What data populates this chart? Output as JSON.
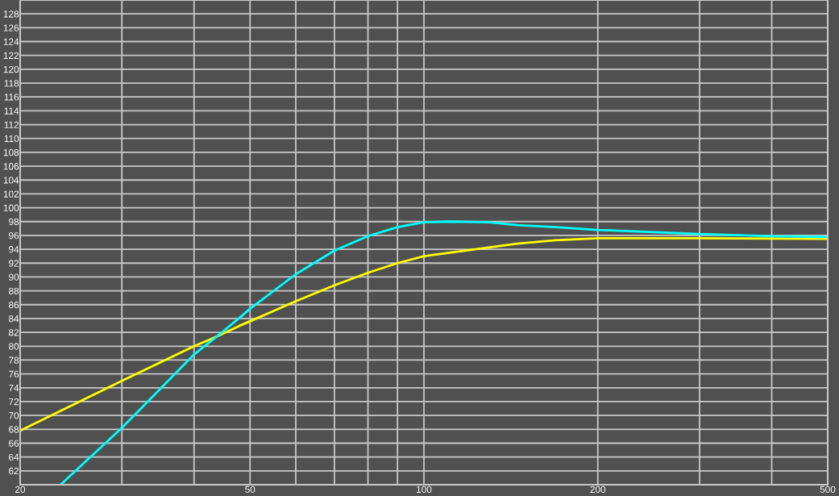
{
  "chart_data": {
    "type": "line",
    "log": "x",
    "xlim": [
      20,
      500
    ],
    "ylim": [
      60,
      130
    ],
    "xticks": [
      20,
      {
        "value": 30,
        "label": null
      },
      {
        "value": 40,
        "label": null
      },
      50,
      {
        "value": 60,
        "label": null
      },
      {
        "value": 70,
        "label": null
      },
      {
        "value": 80,
        "label": null
      },
      {
        "value": 90,
        "label": null
      },
      100,
      200,
      {
        "value": 300,
        "label": null
      },
      {
        "value": 400,
        "label": null
      },
      500
    ],
    "yticks": [
      62,
      64,
      66,
      68,
      70,
      72,
      74,
      76,
      78,
      80,
      82,
      84,
      86,
      88,
      90,
      92,
      94,
      96,
      98,
      100,
      102,
      104,
      106,
      108,
      110,
      112,
      114,
      116,
      118,
      120,
      122,
      124,
      126,
      128
    ],
    "grid": true,
    "marker": "none",
    "line_style": "solid",
    "series": [
      {
        "color": "#ffff00",
        "x": [
          20,
          30,
          40,
          43.8,
          47.8,
          50,
          60,
          70,
          80,
          90,
          100,
          145,
          169,
          200,
          300,
          500
        ],
        "values": [
          67.8,
          75.0,
          80.0,
          81.4,
          82.9,
          83.6,
          86.5,
          88.8,
          90.6,
          92.0,
          93.0,
          94.8,
          95.3,
          95.6,
          95.6,
          95.5
        ]
      },
      {
        "color": "#00ffff",
        "x": [
          23.5,
          30,
          40,
          43.8,
          47.8,
          50,
          60,
          70,
          80,
          90,
          100,
          111,
          130,
          145,
          169,
          200,
          300,
          400,
          500
        ],
        "values": [
          60.0,
          68.2,
          78.8,
          81.4,
          84.0,
          85.4,
          90.4,
          93.8,
          95.9,
          97.2,
          97.9,
          98.0,
          97.9,
          97.5,
          97.2,
          96.8,
          96.2,
          95.9,
          95.8
        ]
      }
    ]
  }
}
